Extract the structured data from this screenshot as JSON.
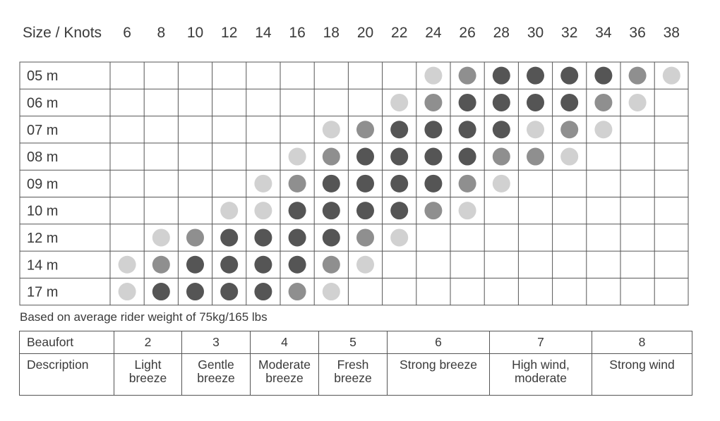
{
  "chart_data": {
    "type": "table",
    "corner_label": "Size / Knots",
    "knots": [
      "6",
      "8",
      "10",
      "12",
      "14",
      "16",
      "18",
      "20",
      "22",
      "24",
      "26",
      "28",
      "30",
      "32",
      "34",
      "36",
      "38"
    ],
    "sizes": [
      "05 m",
      "06 m",
      "07 m",
      "08 m",
      "09 m",
      "10 m",
      "12 m",
      "14 m",
      "17 m"
    ],
    "level_colors": {
      "1": "#d1d1d1",
      "2": "#8f8f8f",
      "3": "#555555"
    },
    "ratings": [
      [
        0,
        0,
        0,
        0,
        0,
        0,
        0,
        0,
        0,
        1,
        2,
        3,
        3,
        3,
        3,
        2,
        1
      ],
      [
        0,
        0,
        0,
        0,
        0,
        0,
        0,
        0,
        1,
        2,
        3,
        3,
        3,
        3,
        2,
        1,
        0
      ],
      [
        0,
        0,
        0,
        0,
        0,
        0,
        1,
        2,
        3,
        3,
        3,
        3,
        1,
        2,
        1,
        0,
        0
      ],
      [
        0,
        0,
        0,
        0,
        0,
        1,
        2,
        3,
        3,
        3,
        3,
        2,
        2,
        1,
        0,
        0,
        0
      ],
      [
        0,
        0,
        0,
        0,
        1,
        2,
        3,
        3,
        3,
        3,
        2,
        1,
        0,
        0,
        0,
        0,
        0
      ],
      [
        0,
        0,
        0,
        1,
        1,
        3,
        3,
        3,
        3,
        2,
        1,
        0,
        0,
        0,
        0,
        0,
        0
      ],
      [
        0,
        1,
        2,
        3,
        3,
        3,
        3,
        2,
        1,
        0,
        0,
        0,
        0,
        0,
        0,
        0,
        0
      ],
      [
        1,
        2,
        3,
        3,
        3,
        3,
        2,
        1,
        0,
        0,
        0,
        0,
        0,
        0,
        0,
        0,
        0
      ],
      [
        1,
        3,
        3,
        3,
        3,
        2,
        1,
        0,
        0,
        0,
        0,
        0,
        0,
        0,
        0,
        0,
        0
      ]
    ]
  },
  "note": "Based on average rider weight of 75kg/165 lbs",
  "beaufort": {
    "label": "Beaufort",
    "desc_label": "Description",
    "columns": [
      {
        "num": "2",
        "l1": "Light",
        "l2": "breeze"
      },
      {
        "num": "3",
        "l1": "Gentle",
        "l2": "breeze"
      },
      {
        "num": "4",
        "l1": "Moderate",
        "l2": "breeze"
      },
      {
        "num": "5",
        "l1": "Fresh",
        "l2": "breeze"
      },
      {
        "num": "6",
        "l1": "Strong breeze",
        "l2": ""
      },
      {
        "num": "7",
        "l1": "High wind,",
        "l2": "moderate"
      },
      {
        "num": "8",
        "l1": "Strong wind",
        "l2": ""
      }
    ]
  }
}
